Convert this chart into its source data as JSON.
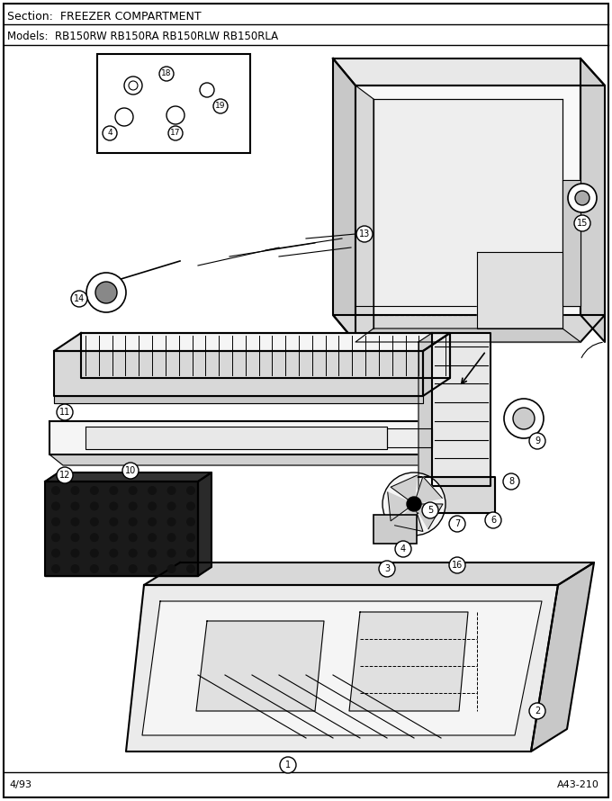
{
  "section_text": "Section:  FREEZER COMPARTMENT",
  "models_text": "Models:  RB150RW RB150RA RB150RLW RB150RLA",
  "bottom_left": "4/93",
  "bottom_right": "A43-210",
  "bg_color": "#ffffff",
  "fig_w": 6.8,
  "fig_h": 8.9,
  "dpi": 100
}
